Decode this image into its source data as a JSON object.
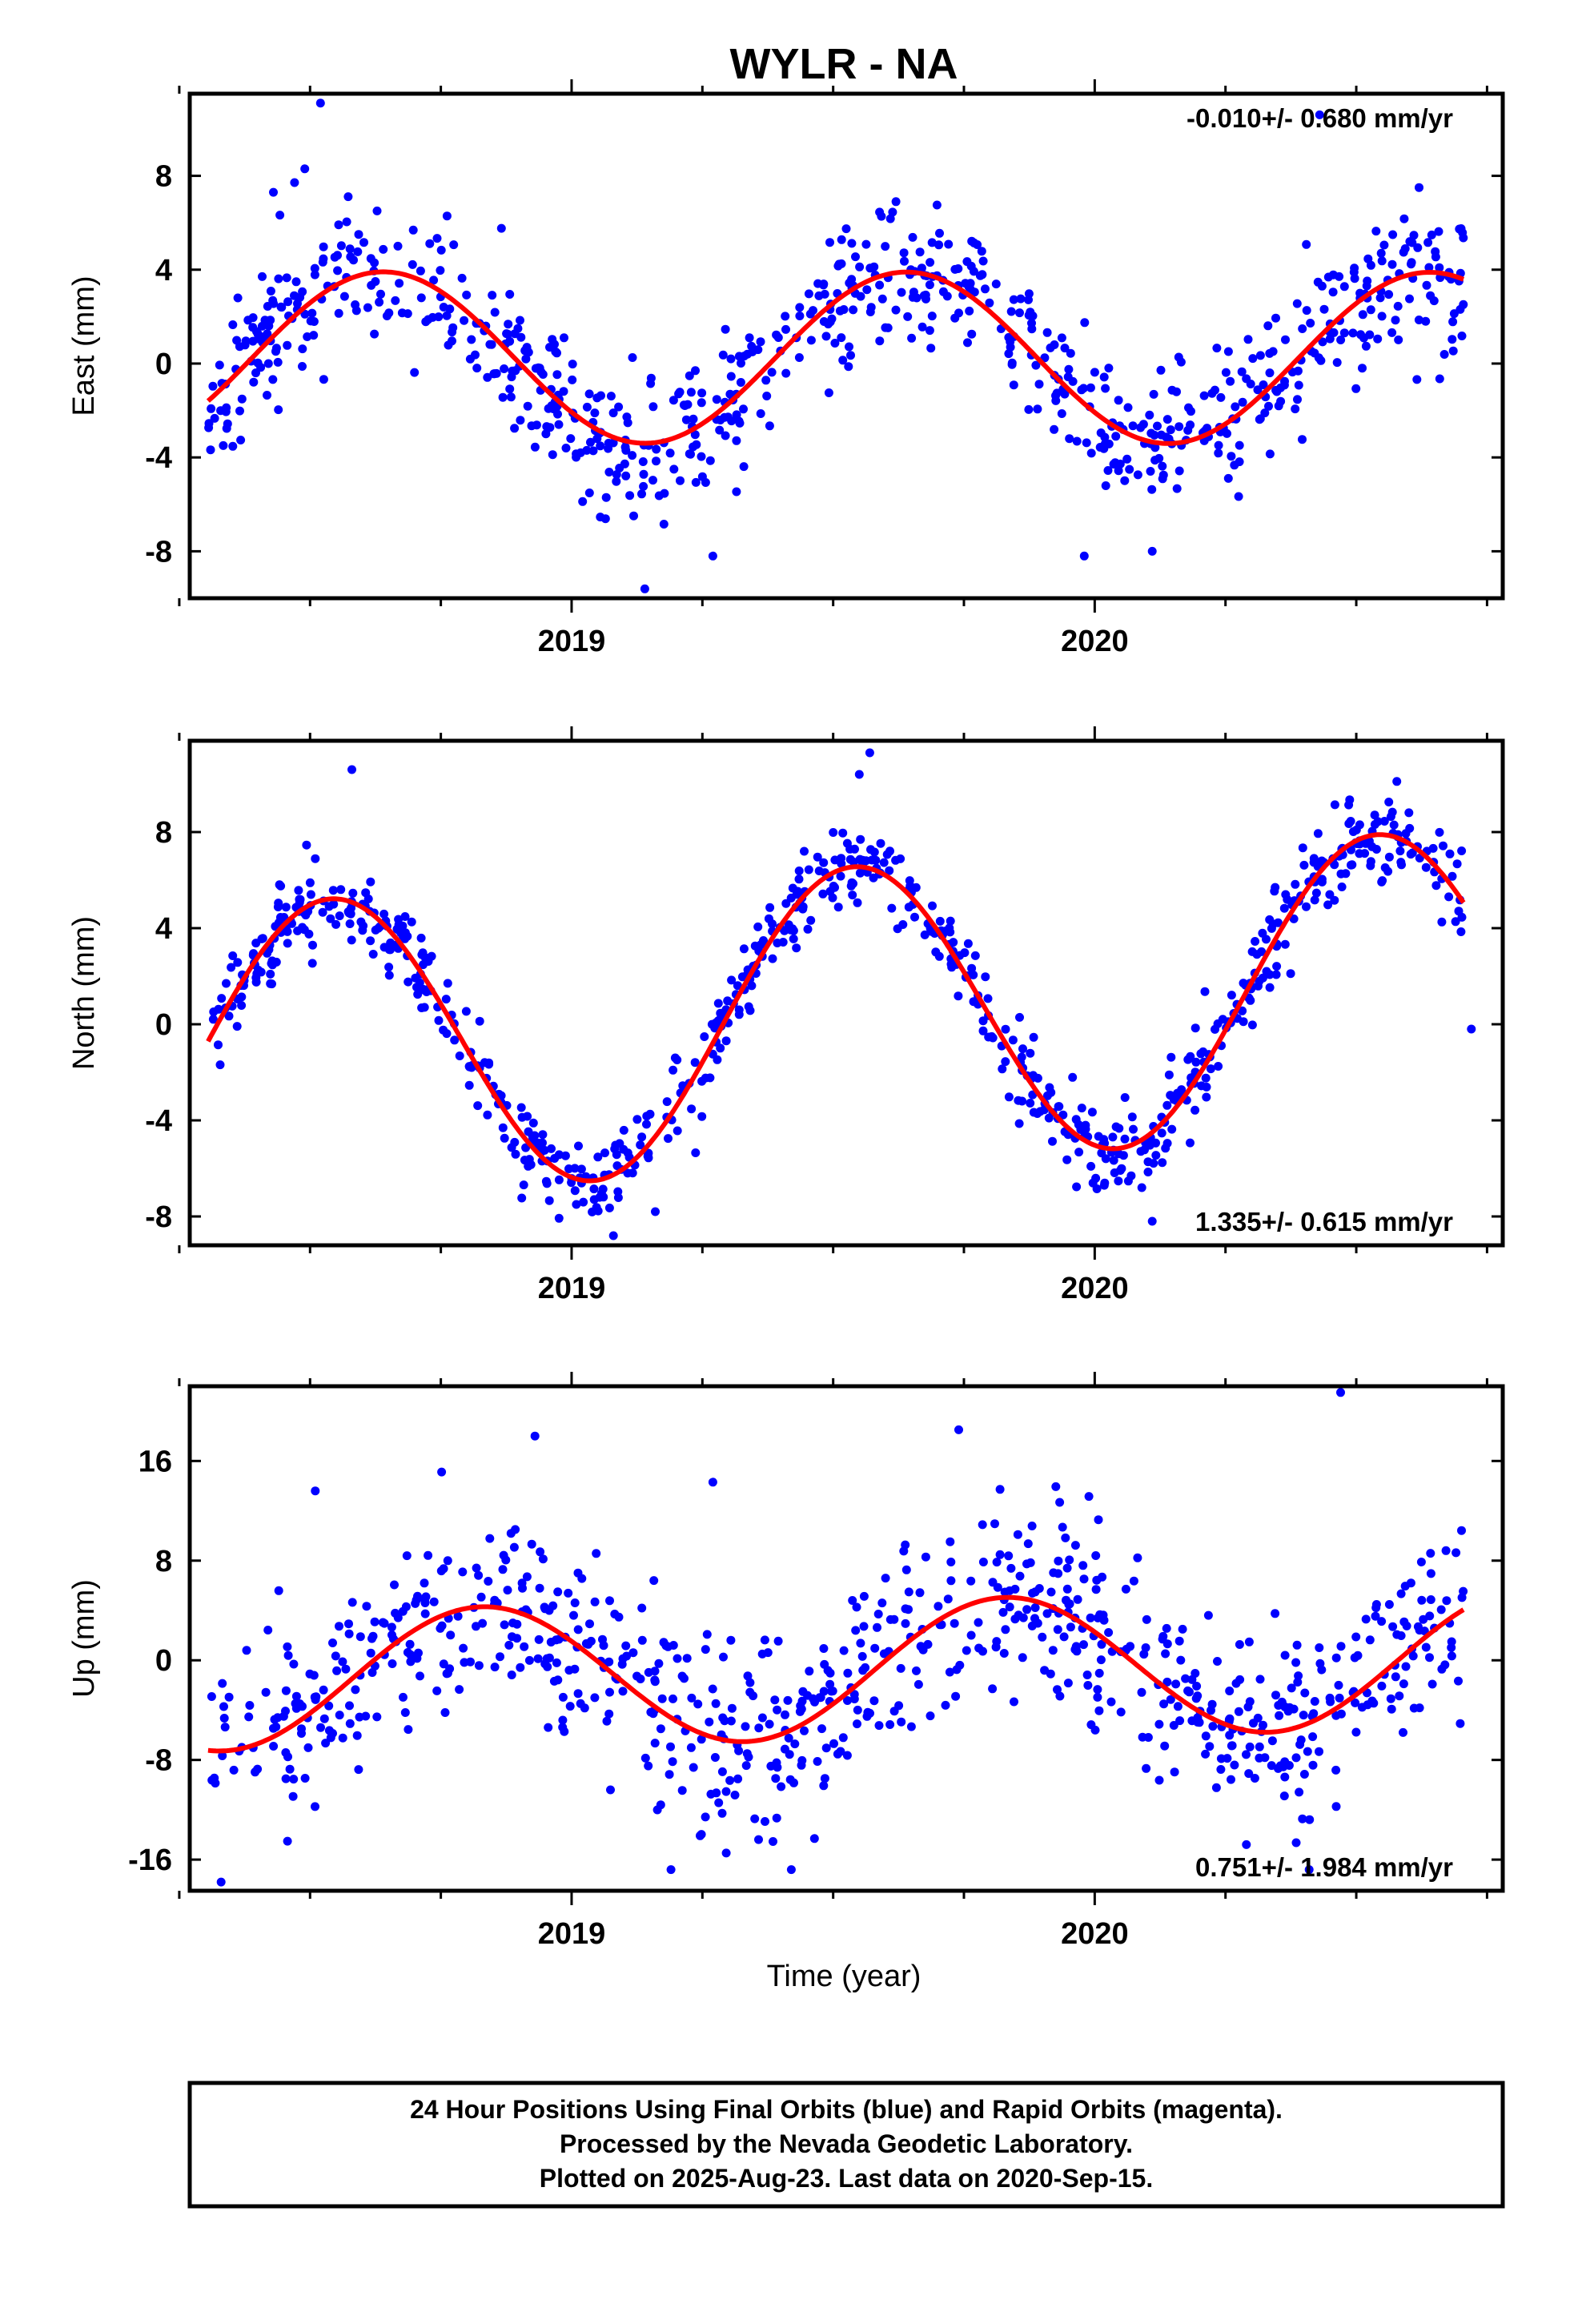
{
  "title": "WYLR - NA",
  "xlabel": "Time (year)",
  "footer": {
    "line1": "24 Hour Positions Using Final Orbits (blue) and Rapid Orbits (magenta).",
    "line2": "Processed by the Nevada Geodetic Laboratory.",
    "line3": "Plotted on 2025-Aug-23. Last data on 2020-Sep-15."
  },
  "colors": {
    "points": "#0000ff",
    "fit": "#ff0000",
    "frame": "#000000"
  },
  "chart_data": [
    {
      "type": "scatter",
      "ylabel": "East (mm)",
      "rate_label": "-0.010+/- 0.680 mm/yr",
      "rate_position": "top-right",
      "xlim": [
        2018.27,
        2020.78
      ],
      "ylim": [
        -10,
        11.5
      ],
      "yticks": [
        -8,
        -4,
        0,
        4,
        8
      ],
      "xticks": [
        "2019",
        "2020"
      ],
      "x_major": [
        2019,
        2020
      ],
      "x_minor": [
        2018.25,
        2018.5,
        2018.75,
        2019.25,
        2019.5,
        2019.75,
        2020.25,
        2020.5,
        2020.75
      ],
      "fit": {
        "offset": 0.25,
        "amplitude": 3.65,
        "peak_year": 2018.64,
        "annual_drift": -0.01
      },
      "scatter_sd": 1.6,
      "outliers": [
        [
          2018.52,
          11.1
        ],
        [
          2018.49,
          8.3
        ],
        [
          2018.43,
          7.3
        ],
        [
          2019.14,
          -9.6
        ],
        [
          2019.27,
          -8.2
        ],
        [
          2019.98,
          -8.2
        ],
        [
          2020.11,
          -8.0
        ],
        [
          2020.43,
          10.6
        ],
        [
          2020.62,
          7.5
        ],
        [
          2019.62,
          6.9
        ]
      ],
      "n_points": 780,
      "seed": 11
    },
    {
      "type": "scatter",
      "ylabel": "North (mm)",
      "rate_label": "1.335+/- 0.615 mm/yr",
      "rate_position": "bottom-right",
      "xlim": [
        2018.27,
        2020.78
      ],
      "ylim": [
        -9.2,
        11.8
      ],
      "yticks": [
        -8,
        -4,
        0,
        4,
        8
      ],
      "xticks": [
        "2019",
        "2020"
      ],
      "x_major": [
        2019,
        2020
      ],
      "x_minor": [
        2018.25,
        2018.5,
        2018.75,
        2019.25,
        2019.5,
        2019.75,
        2020.25,
        2020.5,
        2020.75
      ],
      "fit": {
        "offset": 0.3,
        "amplitude": 6.2,
        "peak_year": 2018.54,
        "annual_drift": 1.335
      },
      "scatter_sd": 0.9,
      "outliers": [
        [
          2018.58,
          10.6
        ],
        [
          2019.57,
          11.3
        ],
        [
          2019.55,
          10.4
        ],
        [
          2019.08,
          -8.8
        ],
        [
          2019.16,
          -7.8
        ],
        [
          2020.11,
          -8.2
        ],
        [
          2020.09,
          -6.8
        ],
        [
          2020.72,
          -0.2
        ]
      ],
      "n_points": 780,
      "seed": 23
    },
    {
      "type": "scatter",
      "ylabel": "Up (mm)",
      "rate_label": "0.751+/- 1.984 mm/yr",
      "rate_position": "bottom-right",
      "xlim": [
        2018.27,
        2020.78
      ],
      "ylim": [
        -18.5,
        22
      ],
      "yticks": [
        -16,
        -8,
        0,
        8,
        16
      ],
      "xticks": [
        "2019",
        "2020"
      ],
      "x_major": [
        2019,
        2020
      ],
      "x_minor": [
        2018.25,
        2018.5,
        2018.75,
        2019.25,
        2019.5,
        2019.75,
        2020.25,
        2020.5,
        2020.75
      ],
      "fit": {
        "offset": -0.8,
        "amplitude": 5.6,
        "peak_year": 2018.83,
        "annual_drift": 0.751
      },
      "scatter_sd": 3.8,
      "outliers": [
        [
          2020.47,
          21.5
        ],
        [
          2019.74,
          18.5
        ],
        [
          2018.93,
          18.0
        ],
        [
          2018.33,
          -17.8
        ],
        [
          2019.19,
          -16.8
        ],
        [
          2019.42,
          -16.8
        ],
        [
          2020.41,
          -16.8
        ],
        [
          2020.29,
          -14.8
        ],
        [
          2018.51,
          13.6
        ],
        [
          2019.27,
          14.3
        ]
      ],
      "n_points": 780,
      "seed": 37
    }
  ]
}
